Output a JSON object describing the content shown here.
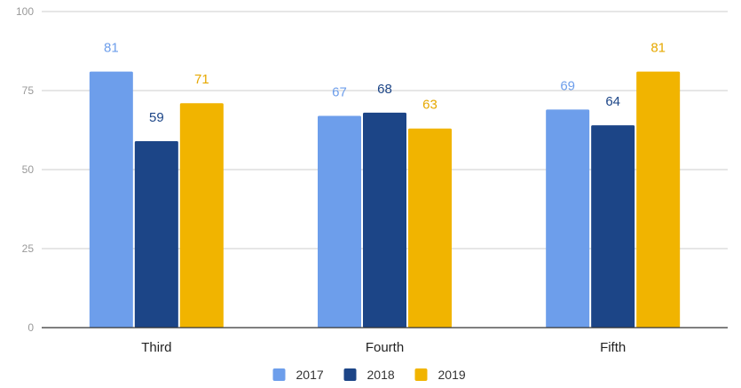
{
  "chart_data": {
    "type": "bar",
    "categories": [
      "Third",
      "Fourth",
      "Fifth"
    ],
    "series": [
      {
        "name": "2017",
        "values": [
          81,
          67,
          69
        ],
        "color": "#6d9eeb",
        "label_color": "#6d9eeb"
      },
      {
        "name": "2018",
        "values": [
          59,
          68,
          64
        ],
        "color": "#1c4587",
        "label_color": "#1c4587"
      },
      {
        "name": "2019",
        "values": [
          71,
          63,
          81
        ],
        "color": "#f1b400",
        "label_color": "#e6a800"
      }
    ],
    "ylim": [
      0,
      100
    ],
    "yticks": [
      0,
      25,
      50,
      75,
      100
    ],
    "grid": true,
    "legend": "bottom",
    "gridline_color": "#cccccc",
    "baseline_color": "#333333"
  }
}
